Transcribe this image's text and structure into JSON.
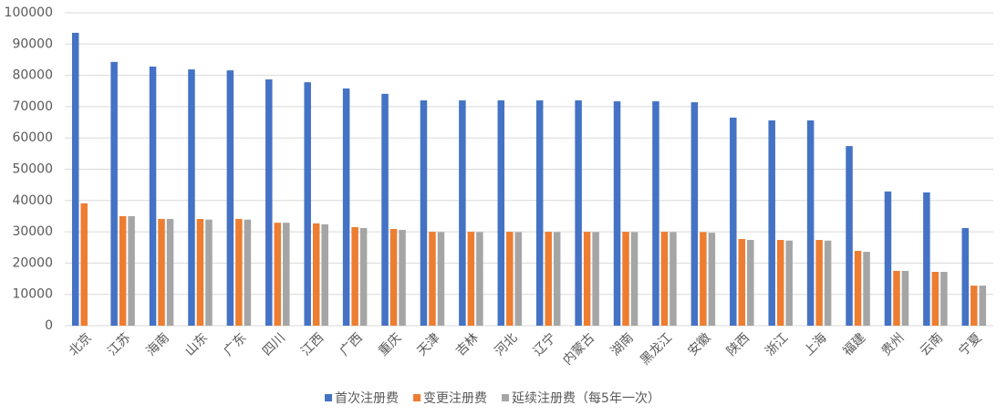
{
  "chart_data": {
    "type": "bar",
    "categories": [
      "北京",
      "江苏",
      "海南",
      "山东",
      "广东",
      "四川",
      "江西",
      "广西",
      "重庆",
      "天津",
      "吉林",
      "河北",
      "辽宁",
      "内蒙古",
      "湖南",
      "黑龙江",
      "安徽",
      "陕西",
      "浙江",
      "上海",
      "福建",
      "贵州",
      "云南",
      "宁夏"
    ],
    "series": [
      {
        "name": "首次注册费",
        "color": "#4472c4",
        "values": [
          93600,
          84300,
          82800,
          81900,
          81600,
          78700,
          77800,
          75800,
          74100,
          72000,
          72000,
          72000,
          72000,
          72000,
          71700,
          71700,
          71400,
          66500,
          65600,
          65600,
          57400,
          42900,
          42600,
          31200
        ]
      },
      {
        "name": "变更注册费",
        "color": "#ed7d31",
        "values": [
          39100,
          35000,
          34100,
          34100,
          34100,
          32900,
          32700,
          31500,
          30900,
          30000,
          30000,
          30000,
          30000,
          30000,
          30000,
          30000,
          29900,
          27700,
          27400,
          27400,
          23900,
          17500,
          17200,
          12800
        ]
      },
      {
        "name": "延续注册费（每5年一次）",
        "color": "#a5a5a5",
        "values": [
          null,
          35000,
          34100,
          33900,
          33900,
          32900,
          32400,
          31200,
          30600,
          29900,
          29900,
          29900,
          29900,
          29900,
          29900,
          29900,
          29700,
          27400,
          27200,
          27200,
          23600,
          17500,
          17200,
          12800
        ]
      }
    ],
    "ylim": [
      0,
      100000
    ],
    "yticks": [
      0,
      10000,
      20000,
      30000,
      40000,
      50000,
      60000,
      70000,
      80000,
      90000,
      100000
    ],
    "grid": true,
    "legend": "bottom"
  }
}
